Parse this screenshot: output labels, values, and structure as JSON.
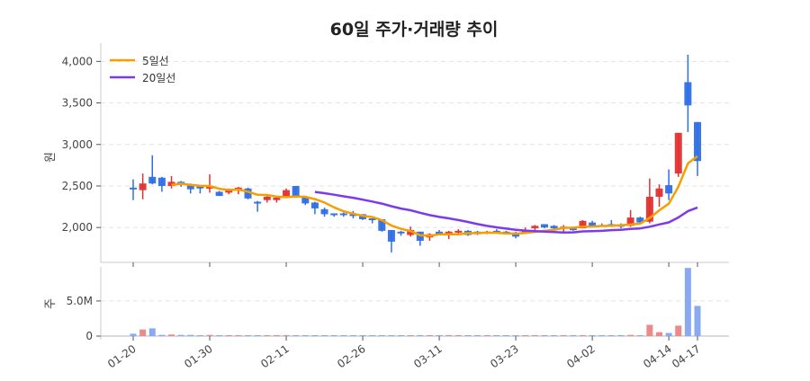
{
  "chart_data": {
    "type": "candlestick",
    "title": "60일 주가·거래량 추이",
    "price_ylabel": "원",
    "volume_ylabel": "주",
    "price_ylim": [
      1580,
      4220
    ],
    "price_ticks": [
      2000,
      2500,
      3000,
      3500,
      4000
    ],
    "price_tick_labels": [
      "2,000",
      "2,500",
      "3,000",
      "3,500",
      "4,000"
    ],
    "volume_ylim": [
      0,
      9400000
    ],
    "volume_ticks": [
      0,
      5000000
    ],
    "volume_tick_labels": [
      "0",
      "5.0M"
    ],
    "grid": true,
    "legend_position": "top-left",
    "colors": {
      "up": "#e03131",
      "down": "#2f6fe4",
      "up_volume": "#ec8a8a",
      "down_volume": "#8aaaf0",
      "ma5": "#f59f00",
      "ma20": "#7c3aed",
      "grid": "#e3e3e8",
      "axis": "#c8cbd6"
    },
    "moving_averages": [
      {
        "name": "5일선",
        "period": 5
      },
      {
        "name": "20일선",
        "period": 20
      }
    ],
    "x_tick_labels": [
      {
        "index": 0,
        "label": "01-20"
      },
      {
        "index": 8,
        "label": "01-30"
      },
      {
        "index": 16,
        "label": "02-11"
      },
      {
        "index": 24,
        "label": "02-26"
      },
      {
        "index": 32,
        "label": "03-11"
      },
      {
        "index": 40,
        "label": "03-23"
      },
      {
        "index": 48,
        "label": "04-02"
      },
      {
        "index": 56,
        "label": "04-14"
      },
      {
        "index": 59,
        "label": "04-17"
      }
    ],
    "ohlc": [
      [
        2480,
        2580,
        2330,
        2460
      ],
      [
        2450,
        2650,
        2340,
        2530
      ],
      [
        2610,
        2870,
        2520,
        2530
      ],
      [
        2600,
        2610,
        2430,
        2500
      ],
      [
        2500,
        2620,
        2470,
        2550
      ],
      [
        2550,
        2560,
        2490,
        2530
      ],
      [
        2520,
        2530,
        2410,
        2460
      ],
      [
        2500,
        2510,
        2410,
        2470
      ],
      [
        2470,
        2640,
        2420,
        2490
      ],
      [
        2430,
        2440,
        2380,
        2380
      ],
      [
        2420,
        2470,
        2400,
        2460
      ],
      [
        2450,
        2490,
        2400,
        2480
      ],
      [
        2470,
        2480,
        2340,
        2350
      ],
      [
        2310,
        2320,
        2190,
        2300
      ],
      [
        2330,
        2380,
        2300,
        2370
      ],
      [
        2330,
        2380,
        2300,
        2360
      ],
      [
        2380,
        2470,
        2360,
        2450
      ],
      [
        2500,
        2500,
        2380,
        2380
      ],
      [
        2360,
        2370,
        2270,
        2290
      ],
      [
        2300,
        2310,
        2160,
        2230
      ],
      [
        2220,
        2240,
        2130,
        2160
      ],
      [
        2170,
        2170,
        2130,
        2150
      ],
      [
        2170,
        2180,
        2130,
        2150
      ],
      [
        2160,
        2200,
        2110,
        2140
      ],
      [
        2160,
        2160,
        2090,
        2100
      ],
      [
        2110,
        2110,
        2050,
        2090
      ],
      [
        2100,
        2100,
        1950,
        1960
      ],
      [
        1970,
        1970,
        1700,
        1830
      ],
      [
        1950,
        1960,
        1900,
        1940
      ],
      [
        1910,
        2010,
        1890,
        1970
      ],
      [
        1950,
        1950,
        1780,
        1840
      ],
      [
        1880,
        1930,
        1840,
        1920
      ],
      [
        1950,
        1970,
        1910,
        1920
      ],
      [
        1930,
        1960,
        1860,
        1950
      ],
      [
        1940,
        1980,
        1920,
        1960
      ],
      [
        1960,
        1970,
        1900,
        1910
      ],
      [
        1950,
        1960,
        1910,
        1920
      ],
      [
        1930,
        1960,
        1920,
        1950
      ],
      [
        1960,
        1980,
        1930,
        1940
      ],
      [
        1950,
        1960,
        1920,
        1930
      ],
      [
        1940,
        1950,
        1870,
        1890
      ],
      [
        1940,
        2000,
        1920,
        1960
      ],
      [
        1990,
        2030,
        1940,
        2020
      ],
      [
        2040,
        2040,
        1990,
        2000
      ],
      [
        2020,
        2030,
        1980,
        1990
      ],
      [
        2000,
        2030,
        1950,
        2010
      ],
      [
        1990,
        2000,
        1960,
        1970
      ],
      [
        1990,
        2090,
        1990,
        2080
      ],
      [
        2060,
        2080,
        2000,
        2010
      ],
      [
        2030,
        2050,
        2010,
        2020
      ],
      [
        2040,
        2090,
        2010,
        2020
      ],
      [
        2040,
        2050,
        1990,
        2010
      ],
      [
        2020,
        2210,
        2010,
        2120
      ],
      [
        2120,
        2130,
        2050,
        2060
      ],
      [
        2070,
        2590,
        2050,
        2370
      ],
      [
        2370,
        2520,
        2250,
        2470
      ],
      [
        2510,
        2700,
        2330,
        2410
      ],
      [
        2650,
        3140,
        2610,
        3140
      ],
      [
        3750,
        4080,
        3150,
        3470
      ],
      [
        3270,
        3270,
        2620,
        2800
      ]
    ],
    "volume": [
      300000,
      850000,
      1000000,
      150000,
      200000,
      150000,
      150000,
      100000,
      150000,
      80000,
      80000,
      80000,
      80000,
      50000,
      50000,
      30000,
      50000,
      30000,
      50000,
      60000,
      50000,
      30000,
      30000,
      30000,
      50000,
      50000,
      80000,
      100000,
      30000,
      30000,
      30000,
      30000,
      30000,
      30000,
      30000,
      30000,
      30000,
      30000,
      30000,
      30000,
      30000,
      50000,
      30000,
      30000,
      30000,
      50000,
      30000,
      30000,
      30000,
      30000,
      30000,
      30000,
      150000,
      50000,
      1450000,
      500000,
      400000,
      1350000,
      8800000,
      3900000
    ]
  }
}
